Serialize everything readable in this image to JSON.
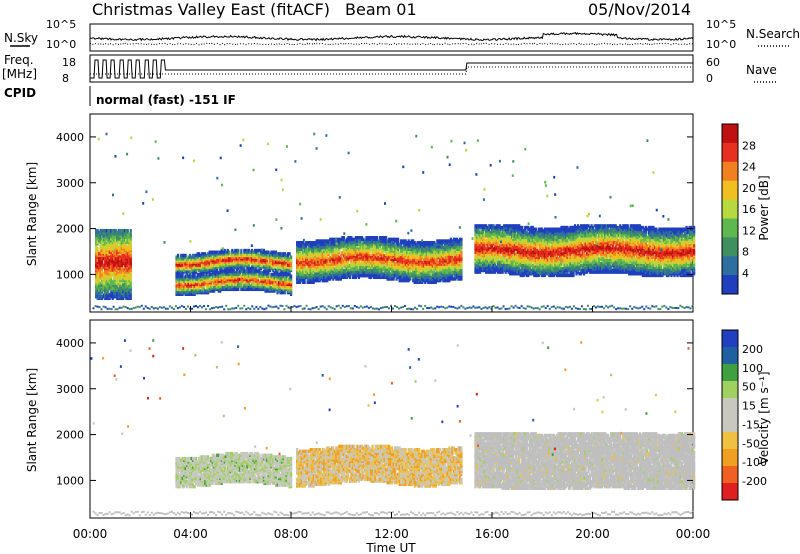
{
  "header": {
    "station": "Christmas Valley East (fitACF)",
    "beam": "Beam 01",
    "date": "05/Nov/2014"
  },
  "status_panels": {
    "left_labels": [
      "N.Sky",
      "Freq.",
      "[MHz]",
      "CPID"
    ],
    "right_labels": [
      "N.Search",
      "Nave"
    ],
    "nsky_ticks": [
      "10^5",
      "10^0"
    ],
    "nsearch_ticks": [
      "10^5",
      "10^0"
    ],
    "freq_ticks": [
      "18",
      "8"
    ],
    "nave_ticks": [
      "60",
      "0"
    ],
    "cpid_text": "normal (fast) -151 IF"
  },
  "colors": {
    "power_scale": [
      "#1f3fbf",
      "#2f6fa0",
      "#3f8f60",
      "#5fb84f",
      "#b8d840",
      "#f0c020",
      "#f08020",
      "#e83020",
      "#c01010"
    ],
    "velocity_scale": [
      "#e02020",
      "#f06020",
      "#f0a020",
      "#f0c040",
      "#c8c8c0",
      "#c8c8c0",
      "#a0d060",
      "#40a040",
      "#2060a0",
      "#2040c0"
    ],
    "ground_scatter": "#bfbfbf"
  },
  "chart_data": [
    {
      "type": "heatmap",
      "panel": "power",
      "xlabel": "",
      "ylabel": "Slant Range [km]",
      "xlim": [
        "00:00",
        "24:00"
      ],
      "ylim": [
        180,
        4500
      ],
      "yticks": [
        "1000",
        "2000",
        "3000",
        "4000"
      ],
      "colorbar": {
        "label": "Power [dB]",
        "ticks": [
          "4",
          "8",
          "12",
          "16",
          "20",
          "24",
          "28"
        ],
        "range": [
          0,
          30
        ]
      },
      "scatter_bands": [
        {
          "t0": 0.2,
          "t1": 1.6,
          "center_km": 1200,
          "halfwidth_km": 500,
          "peak_db": 28
        },
        {
          "t0": 3.4,
          "t1": 8.0,
          "center_km": 1250,
          "halfwidth_km": 120,
          "peak_db": 28
        },
        {
          "t0": 3.4,
          "t1": 8.0,
          "center_km": 800,
          "halfwidth_km": 120,
          "peak_db": 26
        },
        {
          "t0": 8.2,
          "t1": 14.8,
          "center_km": 1300,
          "halfwidth_km": 250,
          "peak_db": 26
        },
        {
          "t0": 15.3,
          "t1": 24.0,
          "center_km": 1500,
          "halfwidth_km": 300,
          "peak_db": 28
        }
      ]
    },
    {
      "type": "heatmap",
      "panel": "velocity",
      "xlabel": "Time UT",
      "ylabel": "Slant Range [km]",
      "xlim": [
        "00:00",
        "24:00"
      ],
      "ylim": [
        180,
        4500
      ],
      "xticks": [
        "00:00",
        "04:00",
        "08:00",
        "12:00",
        "16:00",
        "20:00",
        "00:00"
      ],
      "yticks": [
        "1000",
        "2000",
        "3000",
        "4000"
      ],
      "colorbar": {
        "label": "Velocity [m s⁻¹]",
        "ticks": [
          "200",
          "100",
          "50",
          "15",
          "-15",
          "-50",
          "-100",
          "-200"
        ],
        "range": [
          -250,
          250
        ]
      },
      "scatter_bands": [
        {
          "t0": 3.4,
          "t1": 8.0,
          "center_km": 1200,
          "halfwidth_km": 200,
          "velocity": 30
        },
        {
          "t0": 8.2,
          "t1": 14.8,
          "center_km": 1300,
          "halfwidth_km": 250,
          "velocity": -60
        },
        {
          "t0": 15.3,
          "t1": 24.0,
          "center_km": 1400,
          "halfwidth_km": 400,
          "velocity": 0
        }
      ]
    }
  ]
}
